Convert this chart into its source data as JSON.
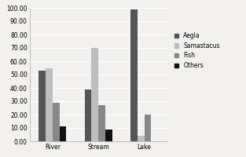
{
  "categories": [
    "River",
    "Stream",
    "Lake"
  ],
  "series": {
    "Aegla": [
      53,
      39,
      99
    ],
    "Samastacus": [
      55,
      70,
      4
    ],
    "Fish": [
      29,
      27,
      20
    ],
    "Others": [
      11,
      9,
      0
    ]
  },
  "colors": {
    "Aegla": "#555555",
    "Samastacus": "#bebebe",
    "Fish": "#888888",
    "Others": "#111111"
  },
  "ylim": [
    0,
    100
  ],
  "yticks": [
    0,
    10,
    20,
    30,
    40,
    50,
    60,
    70,
    80,
    90,
    100
  ],
  "ytick_labels": [
    "0.00",
    "10.00",
    "20.00",
    "30.00",
    "40.00",
    "50.00",
    "60.00",
    "70.00",
    "80.00",
    "90.00",
    "100.00"
  ],
  "legend_order": [
    "Aegla",
    "Samastacus",
    "Fish",
    "Others"
  ],
  "bar_width": 0.15,
  "background_color": "#f2f1ef",
  "font_size": 5.5
}
